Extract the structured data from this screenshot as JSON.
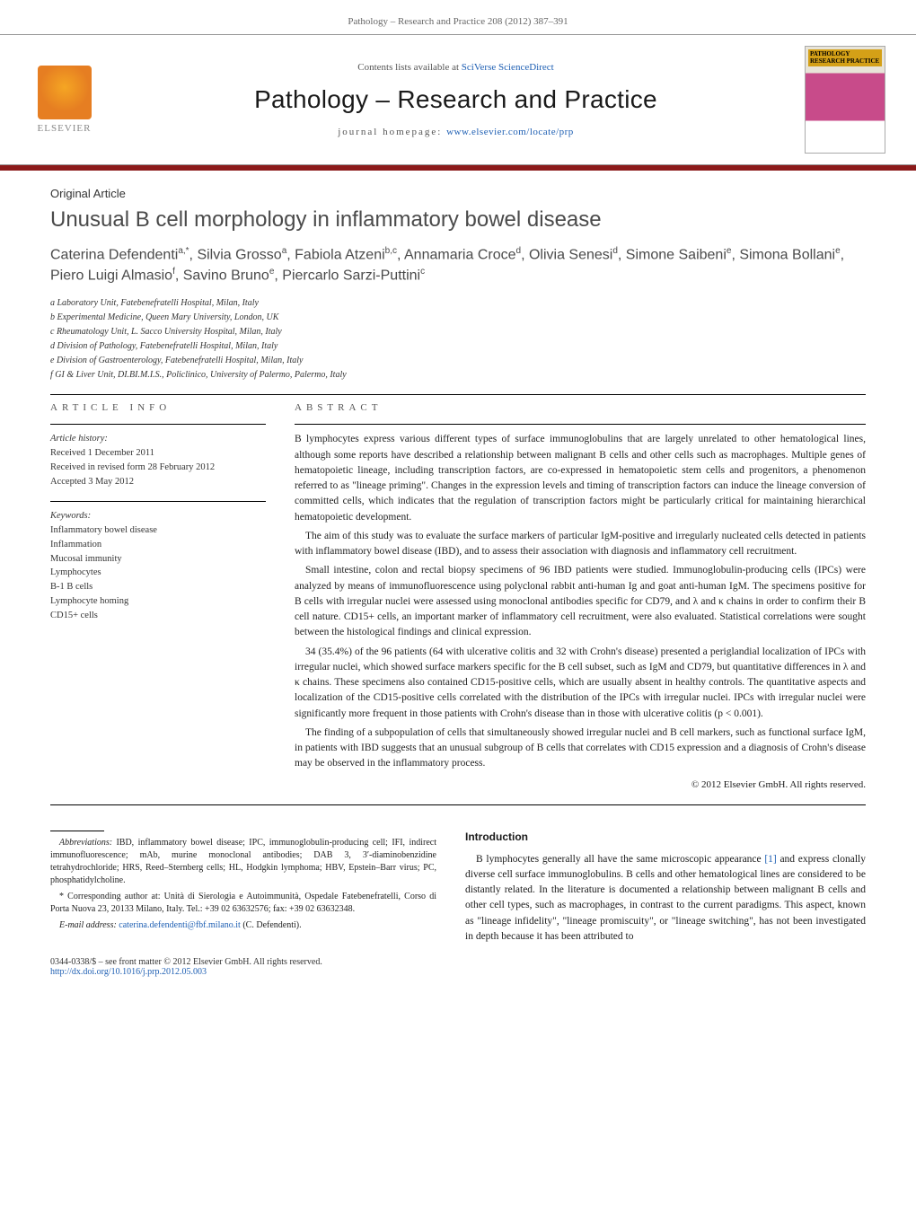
{
  "header": {
    "running_head": "Pathology – Research and Practice 208 (2012) 387–391",
    "contents_prefix": "Contents lists available at ",
    "contents_link": "SciVerse ScienceDirect",
    "journal_title": "Pathology – Research and Practice",
    "homepage_prefix": "journal homepage: ",
    "homepage_url": "www.elsevier.com/locate/prp",
    "publisher_logo": "ELSEVIER",
    "cover_label": "PATHOLOGY RESEARCH PRACTICE"
  },
  "article": {
    "type": "Original Article",
    "title": "Unusual B cell morphology in inflammatory bowel disease",
    "authors_html": "Caterina Defendenti<sup>a,*</sup>, Silvia Grosso<sup>a</sup>, Fabiola Atzeni<sup>b,c</sup>, Annamaria Croce<sup>d</sup>, Olivia Senesi<sup>d</sup>, Simone Saibeni<sup>e</sup>, Simona Bollani<sup>e</sup>, Piero Luigi Almasio<sup>f</sup>, Savino Bruno<sup>e</sup>, Piercarlo Sarzi-Puttini<sup>c</sup>",
    "affiliations": [
      "a Laboratory Unit, Fatebenefratelli Hospital, Milan, Italy",
      "b Experimental Medicine, Queen Mary University, London, UK",
      "c Rheumatology Unit, L. Sacco University Hospital, Milan, Italy",
      "d Division of Pathology, Fatebenefratelli Hospital, Milan, Italy",
      "e Division of Gastroenterology, Fatebenefratelli Hospital, Milan, Italy",
      "f GI & Liver Unit, DI.BI.M.I.S., Policlinico, University of Palermo, Palermo, Italy"
    ]
  },
  "article_info": {
    "label": "article info",
    "history_heading": "Article history:",
    "history": [
      "Received 1 December 2011",
      "Received in revised form 28 February 2012",
      "Accepted 3 May 2012"
    ],
    "keywords_heading": "Keywords:",
    "keywords": [
      "Inflammatory bowel disease",
      "Inflammation",
      "Mucosal immunity",
      "Lymphocytes",
      "B-1 B cells",
      "Lymphocyte homing",
      "CD15+ cells"
    ]
  },
  "abstract": {
    "label": "abstract",
    "paragraphs": [
      "B lymphocytes express various different types of surface immunoglobulins that are largely unrelated to other hematological lines, although some reports have described a relationship between malignant B cells and other cells such as macrophages. Multiple genes of hematopoietic lineage, including transcription factors, are co-expressed in hematopoietic stem cells and progenitors, a phenomenon referred to as \"lineage priming\". Changes in the expression levels and timing of transcription factors can induce the lineage conversion of committed cells, which indicates that the regulation of transcription factors might be particularly critical for maintaining hierarchical hematopoietic development.",
      "The aim of this study was to evaluate the surface markers of particular IgM-positive and irregularly nucleated cells detected in patients with inflammatory bowel disease (IBD), and to assess their association with diagnosis and inflammatory cell recruitment.",
      "Small intestine, colon and rectal biopsy specimens of 96 IBD patients were studied. Immunoglobulin-producing cells (IPCs) were analyzed by means of immunofluorescence using polyclonal rabbit anti-human Ig and goat anti-human IgM. The specimens positive for B cells with irregular nuclei were assessed using monoclonal antibodies specific for CD79, and λ and κ chains in order to confirm their B cell nature. CD15+ cells, an important marker of inflammatory cell recruitment, were also evaluated. Statistical correlations were sought between the histological findings and clinical expression.",
      "34 (35.4%) of the 96 patients (64 with ulcerative colitis and 32 with Crohn's disease) presented a periglandial localization of IPCs with irregular nuclei, which showed surface markers specific for the B cell subset, such as IgM and CD79, but quantitative differences in λ and κ chains. These specimens also contained CD15-positive cells, which are usually absent in healthy controls. The quantitative aspects and localization of the CD15-positive cells correlated with the distribution of the IPCs with irregular nuclei. IPCs with irregular nuclei were significantly more frequent in those patients with Crohn's disease than in those with ulcerative colitis (p < 0.001).",
      "The finding of a subpopulation of cells that simultaneously showed irregular nuclei and B cell markers, such as functional surface IgM, in patients with IBD suggests that an unusual subgroup of B cells that correlates with CD15 expression and a diagnosis of Crohn's disease may be observed in the inflammatory process."
    ],
    "copyright": "© 2012 Elsevier GmbH. All rights reserved."
  },
  "introduction": {
    "heading": "Introduction",
    "text_html": "B lymphocytes generally all have the same microscopic appearance <a href='#'>[1]</a> and express clonally diverse cell surface immunoglobulins. B cells and other hematological lines are considered to be distantly related. In the literature is documented a relationship between malignant B cells and other cell types, such as macrophages, in contrast to the current paradigms. This aspect, known as \"lineage infidelity\", \"lineage promiscuity\", or \"lineage switching\", has not been investigated in depth because it has been attributed to"
  },
  "footnotes": {
    "abbreviations_html": "<em>Abbreviations:</em> IBD, inflammatory bowel disease; IPC, immunoglobulin-producing cell; IFI, indirect immunofluorescence; mAb, murine monoclonal antibodies; DAB 3, 3′-diaminobenzidine tetrahydrochloride; HRS, Reed–Sternberg cells; HL, Hodgkin lymphoma; HBV, Epstein–Barr virus; PC, phosphatidylcholine.",
    "corresponding_html": "* Corresponding author at: Unità di Sierologia e Autoimmunità, Ospedale Fatebenefratelli, Corso di Porta Nuova 23, 20133 Milano, Italy. Tel.: +39 02 63632576; fax: +39 02 63632348.",
    "email_html": "<em>E-mail address:</em> <a href='#'>caterina.defendenti@fbf.milano.it</a> (C. Defendenti)."
  },
  "bottom": {
    "line1": "0344-0338/$ – see front matter © 2012 Elsevier GmbH. All rights reserved.",
    "doi": "http://dx.doi.org/10.1016/j.prp.2012.05.003"
  },
  "colors": {
    "accent": "#8b1a1a",
    "link": "#1e5fb3",
    "text": "#1a1a1a",
    "muted": "#666"
  }
}
